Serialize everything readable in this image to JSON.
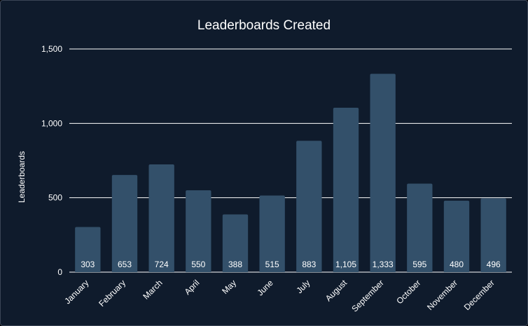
{
  "chart_data": {
    "type": "bar",
    "title": "Leaderboards Created",
    "xlabel": "",
    "ylabel": "Leaderboards",
    "categories": [
      "January",
      "February",
      "March",
      "April",
      "May",
      "June",
      "July",
      "August",
      "September",
      "October",
      "November",
      "December"
    ],
    "values": [
      303,
      653,
      724,
      550,
      388,
      515,
      883,
      1105,
      1333,
      595,
      480,
      496
    ],
    "value_labels": [
      "303",
      "653",
      "724",
      "550",
      "388",
      "515",
      "883",
      "1,105",
      "1,333",
      "595",
      "480",
      "496"
    ],
    "ylim": [
      0,
      1500
    ],
    "y_ticks": [
      0,
      500,
      1000,
      1500
    ],
    "y_tick_labels": [
      "0",
      "500",
      "1,000",
      "1,500"
    ],
    "grid": true,
    "legend": "none",
    "colors": {
      "background": "#0f1b2c",
      "bar": "#33506a",
      "grid": "#ffffff",
      "text": "#ffffff"
    }
  }
}
